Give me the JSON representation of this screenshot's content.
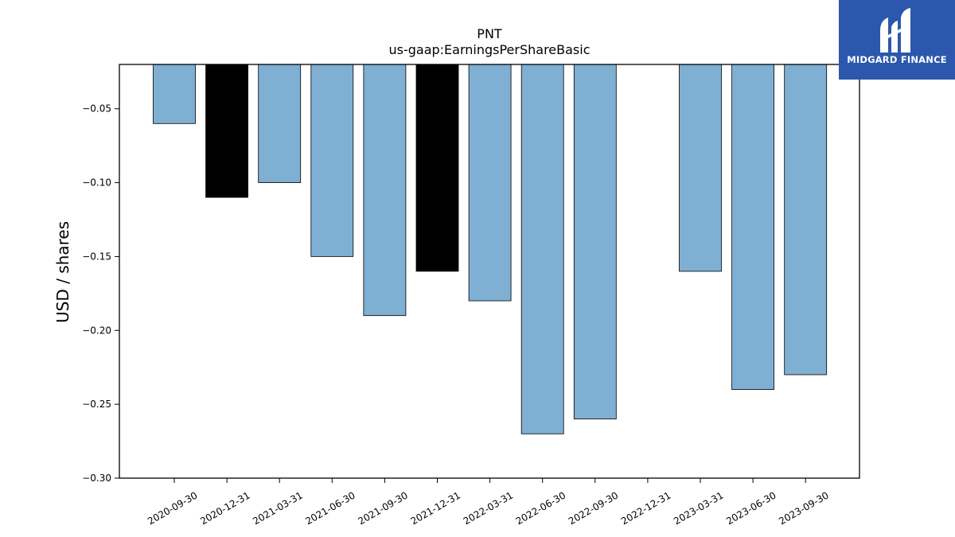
{
  "chart_data": {
    "type": "bar",
    "title": "PNT",
    "subtitle": "us-gaap:EarningsPerShareBasic",
    "ylabel": "USD / shares",
    "xlabel": "",
    "ylim": [
      -0.3,
      -0.02
    ],
    "yticks": [
      -0.05,
      -0.1,
      -0.15,
      -0.2,
      -0.25,
      -0.3
    ],
    "ytick_labels": [
      "−0.05",
      "−0.10",
      "−0.15",
      "−0.20",
      "−0.25",
      "−0.30"
    ],
    "categories": [
      "2020-09-30",
      "2020-12-31",
      "2021-03-31",
      "2021-06-30",
      "2021-09-30",
      "2021-12-31",
      "2022-03-31",
      "2022-06-30",
      "2022-09-30",
      "2022-12-31",
      "2023-03-31",
      "2023-06-30",
      "2023-09-30"
    ],
    "values": [
      -0.06,
      -0.11,
      -0.1,
      -0.15,
      -0.19,
      -0.16,
      -0.18,
      -0.27,
      -0.26,
      null,
      -0.16,
      -0.24,
      -0.23
    ],
    "bar_colors": [
      "#7fafd3",
      "#000000",
      "#7fafd3",
      "#7fafd3",
      "#7fafd3",
      "#000000",
      "#7fafd3",
      "#7fafd3",
      "#7fafd3",
      "#7fafd3",
      "#7fafd3",
      "#7fafd3",
      "#7fafd3"
    ],
    "grid": false
  },
  "logo": {
    "text": "MIDGARD FINANCE",
    "background": "#2b58ad"
  }
}
